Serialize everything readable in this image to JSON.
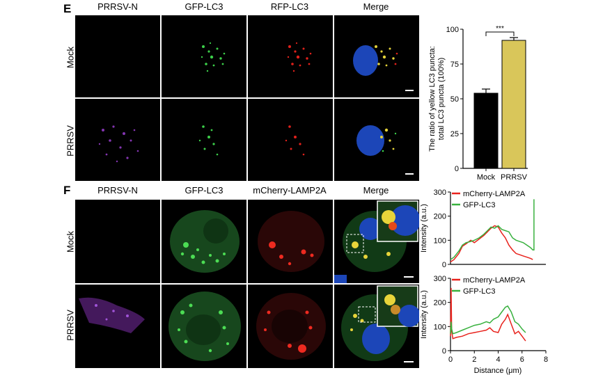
{
  "panel_e": {
    "letter": "E",
    "columns": [
      "PRRSV-N",
      "GFP-LC3",
      "RFP-LC3",
      "Merge"
    ],
    "rows": [
      "Mock",
      "PRRSV"
    ]
  },
  "panel_f": {
    "letter": "F",
    "columns": [
      "PRRSV-N",
      "GFP-LC3",
      "mCherry-LAMP2A",
      "Merge"
    ],
    "rows": [
      "Mock",
      "PRRSV"
    ]
  },
  "chart_data": [
    {
      "type": "bar",
      "categories": [
        "Mock",
        "PRRSV"
      ],
      "values": [
        54,
        92
      ],
      "errors": [
        3,
        2
      ],
      "colors": [
        "#000000",
        "#d9c65a"
      ],
      "ylabel_line1": "The ratio of yellow LC3 puncta:",
      "ylabel_line2": "total LC3 puncta (100%)",
      "ylim": [
        0,
        100
      ],
      "yticks": [
        0,
        25,
        50,
        75,
        100
      ],
      "significance": "***"
    },
    {
      "type": "line",
      "ylabel": "Intensity (a.u.)",
      "ylim": [
        0,
        300
      ],
      "yticks": [
        0,
        100,
        200,
        300
      ],
      "xlim": [
        0,
        8
      ],
      "legend_position": "top-left",
      "series": [
        {
          "name": "mCherry-LAMP2A",
          "color": "#e8221c",
          "x": [
            0,
            0.3,
            0.7,
            1.0,
            1.3,
            1.7,
            2.0,
            2.4,
            2.8,
            3.1,
            3.4,
            3.7,
            4.0,
            4.3,
            4.6,
            4.9,
            5.2,
            5.5,
            5.8,
            6.1,
            6.4,
            6.7,
            6.9
          ],
          "y": [
            10,
            20,
            45,
            75,
            85,
            100,
            90,
            105,
            120,
            135,
            150,
            160,
            155,
            130,
            110,
            80,
            60,
            45,
            40,
            35,
            30,
            25,
            20
          ]
        },
        {
          "name": "GFP-LC3",
          "color": "#38b13e",
          "x": [
            0,
            0.3,
            0.7,
            1.0,
            1.3,
            1.7,
            2.0,
            2.4,
            2.8,
            3.1,
            3.4,
            3.7,
            4.0,
            4.3,
            4.6,
            4.9,
            5.2,
            5.5,
            5.8,
            6.1,
            6.4,
            6.7,
            6.9,
            7.0,
            7.0
          ],
          "y": [
            20,
            30,
            55,
            80,
            90,
            95,
            100,
            110,
            125,
            140,
            155,
            150,
            160,
            145,
            140,
            135,
            110,
            100,
            95,
            90,
            80,
            70,
            60,
            60,
            270
          ]
        }
      ]
    },
    {
      "type": "line",
      "ylabel": "Intensity (a.u.)",
      "xlabel": "Distance (μm)",
      "ylim": [
        0,
        300
      ],
      "yticks": [
        0,
        100,
        200,
        300
      ],
      "xlim": [
        0,
        8
      ],
      "xticks": [
        0,
        2,
        4,
        6,
        8
      ],
      "legend_position": "top-left",
      "series": [
        {
          "name": "mCherry-LAMP2A",
          "color": "#e8221c",
          "x": [
            0,
            0.05,
            0.1,
            0.2,
            0.5,
            1.0,
            1.5,
            2.0,
            2.5,
            3.0,
            3.3,
            3.6,
            4.0,
            4.3,
            4.6,
            4.8,
            5.1,
            5.4,
            5.7,
            6.0,
            6.3
          ],
          "y": [
            60,
            260,
            80,
            50,
            55,
            60,
            70,
            75,
            80,
            85,
            95,
            80,
            75,
            110,
            130,
            150,
            110,
            70,
            80,
            60,
            40
          ]
        },
        {
          "name": "GFP-LC3",
          "color": "#38b13e",
          "x": [
            0,
            0.05,
            0.1,
            0.2,
            0.5,
            1.0,
            1.5,
            2.0,
            2.5,
            3.0,
            3.3,
            3.6,
            4.0,
            4.3,
            4.6,
            4.8,
            5.1,
            5.4,
            5.7,
            6.0,
            6.3
          ],
          "y": [
            70,
            120,
            90,
            70,
            75,
            85,
            95,
            105,
            110,
            120,
            115,
            130,
            140,
            160,
            180,
            185,
            160,
            120,
            110,
            90,
            75
          ]
        }
      ]
    }
  ]
}
